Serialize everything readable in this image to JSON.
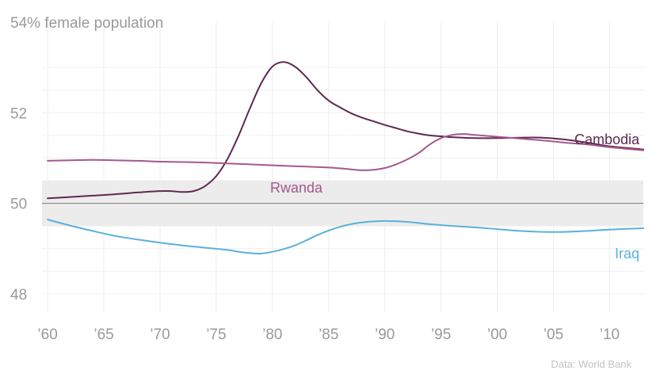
{
  "chart_data": {
    "type": "line",
    "title": "54% female population",
    "source": "Data: World Bank",
    "x_range": [
      1959.5,
      2013
    ],
    "ylim": [
      47.7,
      54
    ],
    "y_ticks": [
      {
        "value": 48,
        "label": "48"
      },
      {
        "value": 50,
        "label": "50"
      },
      {
        "value": 52,
        "label": "52"
      }
    ],
    "x_ticks": [
      {
        "value": 1960,
        "label": "’60"
      },
      {
        "value": 1965,
        "label": "’65"
      },
      {
        "value": 1970,
        "label": "’70"
      },
      {
        "value": 1975,
        "label": "’75"
      },
      {
        "value": 1980,
        "label": "’80"
      },
      {
        "value": 1985,
        "label": "’85"
      },
      {
        "value": 1990,
        "label": "’90"
      },
      {
        "value": 1995,
        "label": "’95"
      },
      {
        "value": 2000,
        "label": "’00"
      },
      {
        "value": 2005,
        "label": "’05"
      },
      {
        "value": 2010,
        "label": "’10"
      }
    ],
    "reference_band": [
      49.5,
      50.5
    ],
    "reference_line": 50,
    "grid": true,
    "series": [
      {
        "name": "Cambodia",
        "color": "#5e2a50",
        "label_anchor": "end",
        "points": [
          [
            1960,
            50.11
          ],
          [
            1962,
            50.14
          ],
          [
            1964,
            50.17
          ],
          [
            1966,
            50.2
          ],
          [
            1968,
            50.24
          ],
          [
            1970,
            50.27
          ],
          [
            1971,
            50.27
          ],
          [
            1972,
            50.25
          ],
          [
            1973,
            50.27
          ],
          [
            1974,
            50.38
          ],
          [
            1975,
            50.6
          ],
          [
            1976,
            50.98
          ],
          [
            1977,
            51.5
          ],
          [
            1978,
            52.1
          ],
          [
            1979,
            52.65
          ],
          [
            1980,
            53.02
          ],
          [
            1981,
            53.12
          ],
          [
            1982,
            53.02
          ],
          [
            1983,
            52.79
          ],
          [
            1984,
            52.5
          ],
          [
            1985,
            52.27
          ],
          [
            1986,
            52.12
          ],
          [
            1987,
            51.99
          ],
          [
            1988,
            51.89
          ],
          [
            1989,
            51.81
          ],
          [
            1990,
            51.73
          ],
          [
            1991,
            51.66
          ],
          [
            1992,
            51.59
          ],
          [
            1993,
            51.54
          ],
          [
            1994,
            51.5
          ],
          [
            1995,
            51.48
          ],
          [
            1996,
            51.46
          ],
          [
            1998,
            51.44
          ],
          [
            2000,
            51.44
          ],
          [
            2002,
            51.45
          ],
          [
            2004,
            51.45
          ],
          [
            2006,
            51.41
          ],
          [
            2008,
            51.34
          ],
          [
            2010,
            51.26
          ],
          [
            2013,
            51.19
          ]
        ]
      },
      {
        "name": "Rwanda",
        "color": "#a4588f",
        "label_anchor": "middle",
        "points": [
          [
            1960,
            50.94
          ],
          [
            1962,
            50.95
          ],
          [
            1964,
            50.96
          ],
          [
            1966,
            50.95
          ],
          [
            1968,
            50.94
          ],
          [
            1970,
            50.92
          ],
          [
            1974,
            50.9
          ],
          [
            1978,
            50.86
          ],
          [
            1982,
            50.82
          ],
          [
            1985,
            50.79
          ],
          [
            1987,
            50.75
          ],
          [
            1988,
            50.73
          ],
          [
            1989,
            50.74
          ],
          [
            1990,
            50.78
          ],
          [
            1991,
            50.86
          ],
          [
            1992,
            50.97
          ],
          [
            1993,
            51.11
          ],
          [
            1994,
            51.3
          ],
          [
            1995,
            51.44
          ],
          [
            1996,
            51.51
          ],
          [
            1997,
            51.53
          ],
          [
            1998,
            51.51
          ],
          [
            2000,
            51.47
          ],
          [
            2002,
            51.43
          ],
          [
            2004,
            51.39
          ],
          [
            2006,
            51.34
          ],
          [
            2008,
            51.3
          ],
          [
            2010,
            51.24
          ],
          [
            2013,
            51.17
          ]
        ]
      },
      {
        "name": "Iraq",
        "color": "#5ab1dc",
        "label_anchor": "end",
        "points": [
          [
            1960,
            49.64
          ],
          [
            1962,
            49.51
          ],
          [
            1964,
            49.39
          ],
          [
            1966,
            49.28
          ],
          [
            1968,
            49.2
          ],
          [
            1970,
            49.13
          ],
          [
            1972,
            49.07
          ],
          [
            1974,
            49.02
          ],
          [
            1976,
            48.97
          ],
          [
            1977,
            48.93
          ],
          [
            1978,
            48.9
          ],
          [
            1979,
            48.89
          ],
          [
            1980,
            48.93
          ],
          [
            1981,
            48.99
          ],
          [
            1982,
            49.07
          ],
          [
            1983,
            49.18
          ],
          [
            1984,
            49.3
          ],
          [
            1985,
            49.4
          ],
          [
            1986,
            49.48
          ],
          [
            1987,
            49.54
          ],
          [
            1988,
            49.58
          ],
          [
            1990,
            49.61
          ],
          [
            1992,
            49.59
          ],
          [
            1994,
            49.54
          ],
          [
            1996,
            49.5
          ],
          [
            1998,
            49.47
          ],
          [
            2000,
            49.43
          ],
          [
            2002,
            49.39
          ],
          [
            2004,
            49.37
          ],
          [
            2006,
            49.37
          ],
          [
            2008,
            49.39
          ],
          [
            2010,
            49.42
          ],
          [
            2013,
            49.45
          ]
        ]
      }
    ]
  }
}
